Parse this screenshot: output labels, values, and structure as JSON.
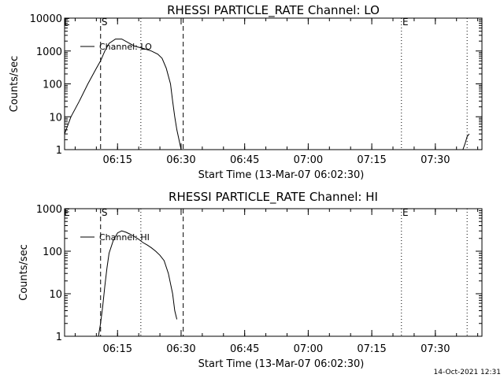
{
  "footer": {
    "timestamp": "14-Oct-2021 12:31"
  },
  "chart_data": [
    {
      "type": "line",
      "title": "RHESSI PARTICLE_RATE Channel: LO",
      "xlabel": "Start Time (13-Mar-07 06:02:30)",
      "ylabel": "Counts/sec",
      "y_scale": "log",
      "ylim": [
        1,
        10000
      ],
      "xlim": [
        "06:02:30",
        "07:41:00"
      ],
      "x_tick_labels": [
        "06:15",
        "06:30",
        "06:45",
        "07:00",
        "07:15",
        "07:30"
      ],
      "y_tick_labels": [
        "1",
        "10",
        "100",
        "1000",
        "10000"
      ],
      "legend": {
        "placement": "top-left",
        "entries": [
          "Channel: LO"
        ]
      },
      "markers": [
        {
          "time": "06:11:00",
          "style": "dashed",
          "label": "S"
        },
        {
          "time": "06:20:30",
          "style": "dotted",
          "label": ""
        },
        {
          "time": "06:30:30",
          "style": "dashed",
          "label": ""
        },
        {
          "time": "07:22:00",
          "style": "dotted",
          "label": "E"
        },
        {
          "time": "07:37:30",
          "style": "dotted",
          "label": ""
        }
      ],
      "corner_label": "E",
      "series": [
        {
          "name": "Channel: LO",
          "segments": [
            [
              [
                "06:02:30",
                3
              ],
              [
                "06:04:00",
                10
              ],
              [
                "06:06:00",
                30
              ],
              [
                "06:08:00",
                100
              ],
              [
                "06:10:00",
                300
              ],
              [
                "06:11:00",
                500
              ],
              [
                "06:12:00",
                1000
              ],
              [
                "06:13:00",
                1700
              ],
              [
                "06:14:30",
                2300
              ],
              [
                "06:16:00",
                2300
              ],
              [
                "06:17:30",
                1800
              ],
              [
                "06:19:00",
                1400
              ],
              [
                "06:21:00",
                1200
              ],
              [
                "06:23:00",
                1000
              ],
              [
                "06:24:30",
                800
              ],
              [
                "06:25:30",
                600
              ],
              [
                "06:26:30",
                300
              ],
              [
                "06:27:30",
                100
              ],
              [
                "06:28:00",
                30
              ],
              [
                "06:28:30",
                10
              ],
              [
                "06:29:00",
                4
              ],
              [
                "06:29:30",
                2
              ],
              [
                "06:30:00",
                1
              ]
            ],
            [
              [
                "07:36:30",
                1
              ],
              [
                "07:37:00",
                1.5
              ],
              [
                "07:37:30",
                2.5
              ],
              [
                "07:38:00",
                3
              ]
            ]
          ]
        }
      ]
    },
    {
      "type": "line",
      "title": "RHESSI PARTICLE_RATE Channel: HI",
      "xlabel": "Start Time (13-Mar-07 06:02:30)",
      "ylabel": "Counts/sec",
      "y_scale": "log",
      "ylim": [
        1,
        1000
      ],
      "xlim": [
        "06:02:30",
        "07:41:00"
      ],
      "x_tick_labels": [
        "06:15",
        "06:30",
        "06:45",
        "07:00",
        "07:15",
        "07:30"
      ],
      "y_tick_labels": [
        "1",
        "10",
        "100",
        "1000"
      ],
      "legend": {
        "placement": "top-left",
        "entries": [
          "Channel: HI"
        ]
      },
      "markers": [
        {
          "time": "06:11:00",
          "style": "dashed",
          "label": "S"
        },
        {
          "time": "06:20:30",
          "style": "dotted",
          "label": ""
        },
        {
          "time": "06:30:30",
          "style": "dashed",
          "label": ""
        },
        {
          "time": "07:22:00",
          "style": "dotted",
          "label": "E"
        },
        {
          "time": "07:37:30",
          "style": "dotted",
          "label": ""
        }
      ],
      "corner_label": "E",
      "series": [
        {
          "name": "Channel: HI",
          "segments": [
            [
              [
                "06:10:30",
                1
              ],
              [
                "06:11:00",
                2
              ],
              [
                "06:11:30",
                5
              ],
              [
                "06:12:00",
                15
              ],
              [
                "06:12:30",
                40
              ],
              [
                "06:13:00",
                90
              ],
              [
                "06:14:00",
                180
              ],
              [
                "06:15:00",
                270
              ],
              [
                "06:16:00",
                300
              ],
              [
                "06:17:00",
                280
              ],
              [
                "06:18:00",
                250
              ],
              [
                "06:19:00",
                220
              ],
              [
                "06:20:00",
                190
              ],
              [
                "06:21:00",
                160
              ],
              [
                "06:22:00",
                140
              ],
              [
                "06:23:00",
                120
              ],
              [
                "06:24:00",
                100
              ],
              [
                "06:25:00",
                80
              ],
              [
                "06:26:00",
                60
              ],
              [
                "06:27:00",
                30
              ],
              [
                "06:28:00",
                10
              ],
              [
                "06:28:30",
                4
              ],
              [
                "06:29:00",
                2.5
              ]
            ]
          ]
        }
      ]
    }
  ]
}
